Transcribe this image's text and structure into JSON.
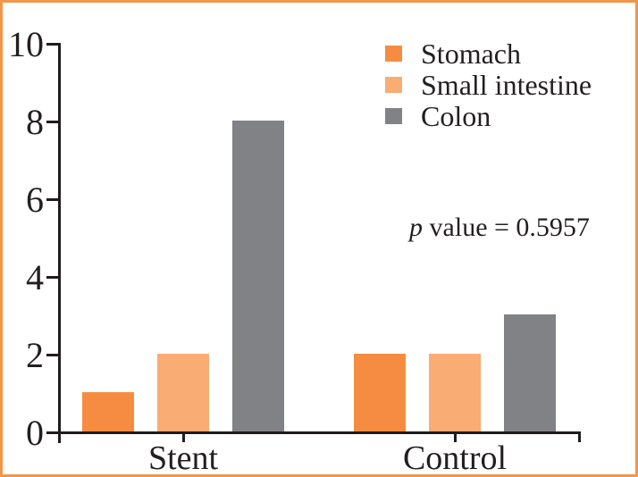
{
  "figure": {
    "border_color": "#F1964B",
    "axis_color": "#1f1c1d",
    "text_color": "#231F20",
    "background": "#FFFFFF"
  },
  "chart_data": {
    "type": "bar",
    "categories": [
      "Stent",
      "Control"
    ],
    "series": [
      {
        "name": "Stomach",
        "color": "#F68C41",
        "values": [
          1,
          2
        ]
      },
      {
        "name": "Small intestine",
        "color": "#F9AC74",
        "values": [
          2,
          2
        ]
      },
      {
        "name": "Colon",
        "color": "#808285",
        "values": [
          8,
          3
        ]
      }
    ],
    "ylim": [
      0,
      10
    ],
    "yticks": [
      0,
      2,
      4,
      6,
      8,
      10
    ],
    "grid": false,
    "legend_position": "top-right",
    "annotation": {
      "italic": "p",
      "text": " value = 0.5957"
    },
    "title": "",
    "xlabel": "",
    "ylabel": ""
  }
}
